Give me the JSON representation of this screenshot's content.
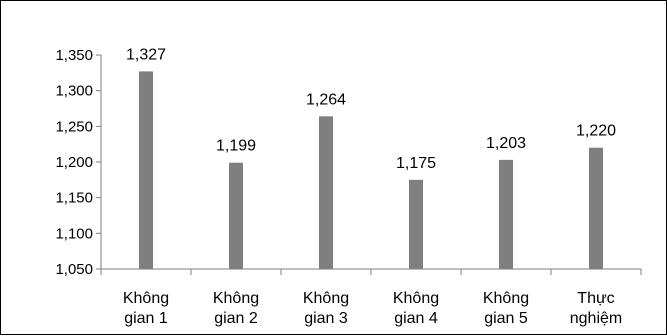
{
  "chart_data": {
    "type": "bar",
    "categories": [
      [
        "Không",
        "gian 1"
      ],
      [
        "Không",
        "gian 2"
      ],
      [
        "Không",
        "gian 3"
      ],
      [
        "Không",
        "gian 4"
      ],
      [
        "Không",
        "gian 5"
      ],
      [
        "Thực",
        "nghiệm"
      ]
    ],
    "values": [
      1.327,
      1.199,
      1.264,
      1.175,
      1.203,
      1.22
    ],
    "value_labels": [
      "1,327",
      "1,199",
      "1,264",
      "1,175",
      "1,203",
      "1,220"
    ],
    "yticks": [
      1.05,
      1.1,
      1.15,
      1.2,
      1.25,
      1.3,
      1.35
    ],
    "ytick_labels": [
      "1,050",
      "1,100",
      "1,150",
      "1,200",
      "1,250",
      "1,300",
      "1,350"
    ],
    "ylim": [
      1.05,
      1.35
    ],
    "title": "",
    "xlabel": "",
    "ylabel": "",
    "grid": false,
    "legend": "none",
    "bar_color": "#7f7f7f",
    "axis_color": "#7f7f7f"
  }
}
